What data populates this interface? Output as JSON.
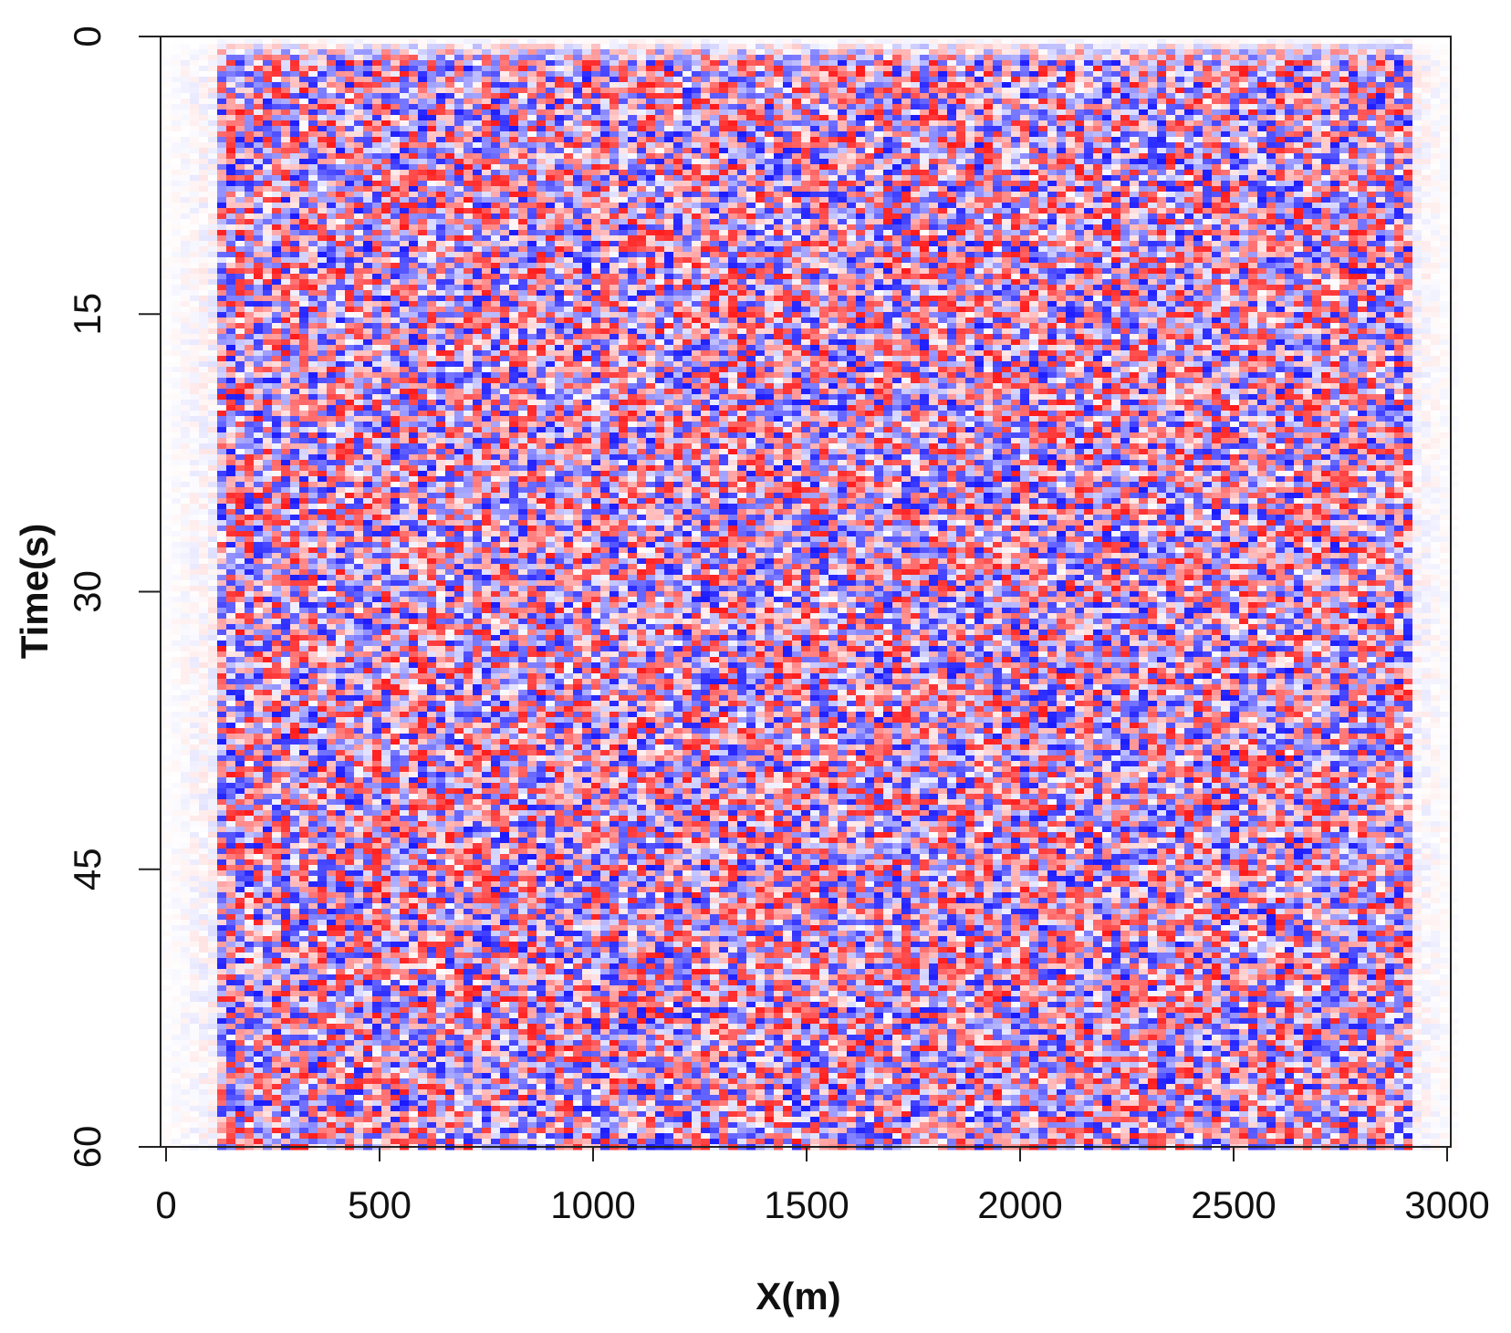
{
  "chart_data": {
    "type": "heatmap",
    "title": "",
    "xlabel": "X(m)",
    "ylabel": "Time(s)",
    "x_ticks": [
      0,
      500,
      1000,
      1500,
      2000,
      2500,
      3000
    ],
    "y_ticks": [
      0,
      15,
      30,
      45,
      60
    ],
    "xlim": [
      0,
      3000
    ],
    "ylim": [
      60,
      0
    ],
    "y_axis_inverted": true,
    "colormap": {
      "negative": "#1a1aff",
      "zero": "#ffffff",
      "positive": "#ff1a1a"
    },
    "data_extent": {
      "x_start": 100,
      "x_end": 2900,
      "t_start": 1,
      "t_end": 60
    },
    "grid": false,
    "legend": "none",
    "description_of_values": "Random seismic-noise amplitudes ranging from negative (blue) to positive (red)"
  }
}
